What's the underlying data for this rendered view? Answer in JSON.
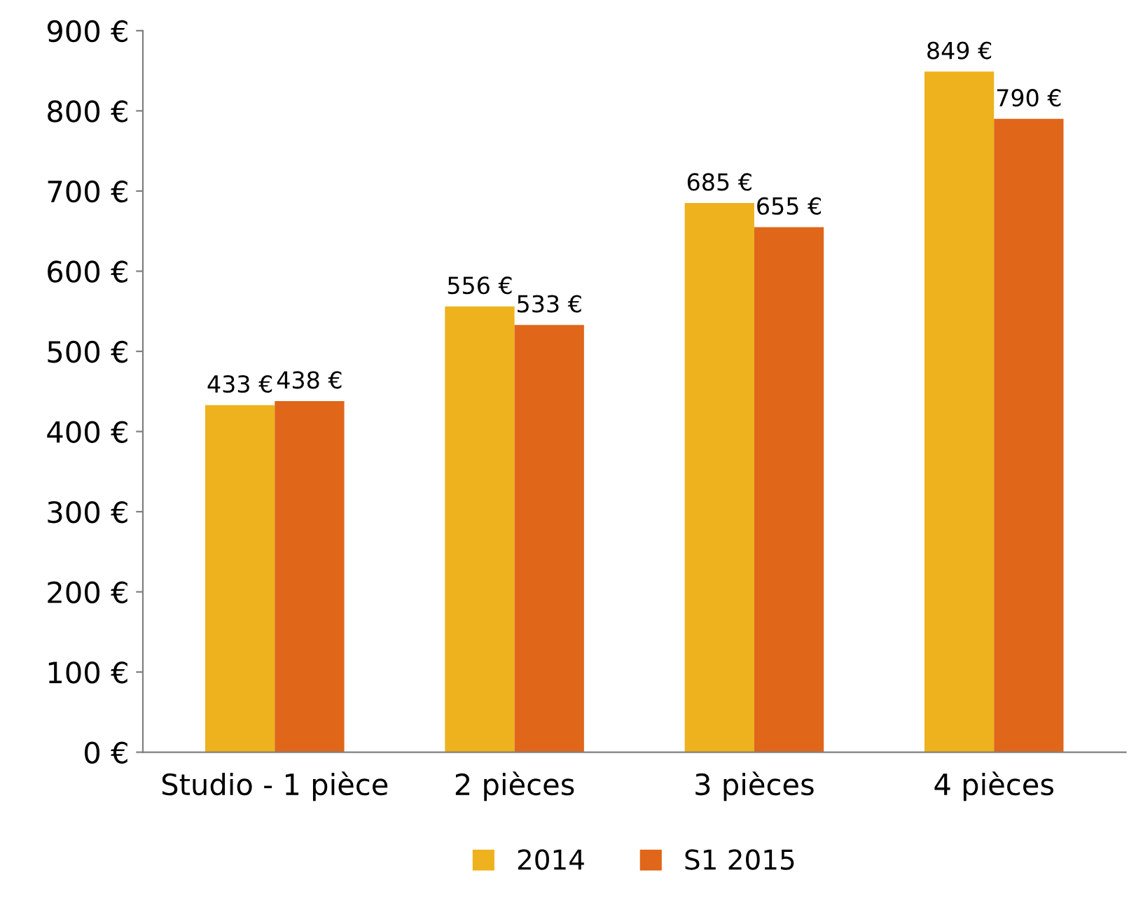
{
  "chart_data": {
    "type": "bar",
    "categories": [
      "Studio - 1 pièce",
      "2 pièces",
      "3 pièces",
      "4 pièces"
    ],
    "series": [
      {
        "name": "2014",
        "color": "#edb21d",
        "values": [
          433,
          556,
          685,
          849
        ],
        "value_labels": [
          "433 €",
          "556 €",
          "685 €",
          "849 €"
        ]
      },
      {
        "name": "S1 2015",
        "color": "#e0661a",
        "values": [
          438,
          533,
          655,
          790
        ],
        "value_labels": [
          "438 €",
          "533 €",
          "655 €",
          "790 €"
        ]
      }
    ],
    "ylim": [
      0,
      900
    ],
    "yticks": [
      {
        "value": 0,
        "label": "0 €"
      },
      {
        "value": 100,
        "label": "100 €"
      },
      {
        "value": 200,
        "label": "200 €"
      },
      {
        "value": 300,
        "label": "300 €"
      },
      {
        "value": 400,
        "label": "400 €"
      },
      {
        "value": 500,
        "label": "500 €"
      },
      {
        "value": 600,
        "label": "600 €"
      },
      {
        "value": 700,
        "label": "700 €"
      },
      {
        "value": 800,
        "label": "800 €"
      },
      {
        "value": 900,
        "label": "900 €"
      }
    ],
    "grid": false,
    "legend": "bottom"
  }
}
